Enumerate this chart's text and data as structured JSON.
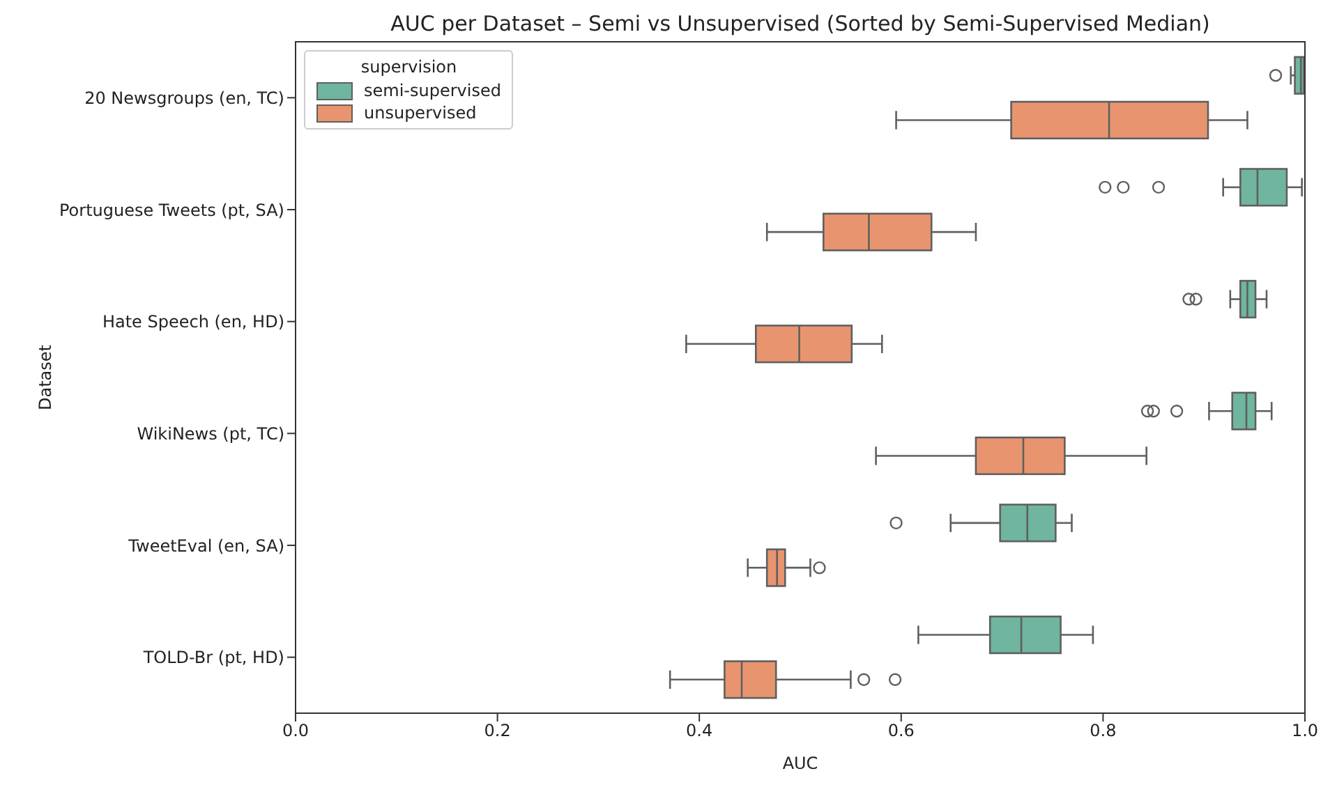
{
  "chart_data": {
    "type": "box",
    "orientation": "horizontal",
    "title": "AUC per Dataset – Semi vs Unsupervised (Sorted by Semi-Supervised Median)",
    "xlabel": "AUC",
    "ylabel": "Dataset",
    "legend_title": "supervision",
    "legend": "top left",
    "categories": [
      "20 Newsgroups (en, TC)",
      "Portuguese Tweets (pt, SA)",
      "Hate Speech (en, HD)",
      "WikiNews (pt, TC)",
      "TweetEval (en, SA)",
      "TOLD-Br (pt, HD)"
    ],
    "xlim": [
      0,
      1
    ],
    "xticks": [
      {
        "value": 0,
        "label": "0.0"
      },
      0.2,
      0.4,
      0.6,
      0.8,
      {
        "value": 1,
        "label": "1.0"
      }
    ],
    "series": [
      {
        "name": "semi-supervised",
        "color": "#6fb59f",
        "boxes": [
          {
            "low": 0.986,
            "q1": 0.99,
            "median": 0.996,
            "q3": 0.999,
            "high": 1.0,
            "outliers": [
              0.971
            ]
          },
          {
            "low": 0.919,
            "q1": 0.936,
            "median": 0.953,
            "q3": 0.982,
            "high": 0.997,
            "outliers": [
              0.802,
              0.82,
              0.855
            ]
          },
          {
            "low": 0.926,
            "q1": 0.936,
            "median": 0.943,
            "q3": 0.951,
            "high": 0.962,
            "outliers": [
              0.885,
              0.892
            ]
          },
          {
            "low": 0.905,
            "q1": 0.928,
            "median": 0.942,
            "q3": 0.951,
            "high": 0.967,
            "outliers": [
              0.844,
              0.85,
              0.873
            ]
          },
          {
            "low": 0.649,
            "q1": 0.698,
            "median": 0.725,
            "q3": 0.753,
            "high": 0.769,
            "outliers": [
              0.595
            ]
          },
          {
            "low": 0.617,
            "q1": 0.688,
            "median": 0.719,
            "q3": 0.758,
            "high": 0.79
          }
        ]
      },
      {
        "name": "unsupervised",
        "color": "#e8956f",
        "boxes": [
          {
            "low": 0.595,
            "q1": 0.709,
            "median": 0.806,
            "q3": 0.904,
            "high": 0.943
          },
          {
            "low": 0.467,
            "q1": 0.523,
            "median": 0.568,
            "q3": 0.63,
            "high": 0.674
          },
          {
            "low": 0.387,
            "q1": 0.456,
            "median": 0.499,
            "q3": 0.551,
            "high": 0.581
          },
          {
            "low": 0.575,
            "q1": 0.674,
            "median": 0.721,
            "q3": 0.762,
            "high": 0.843
          },
          {
            "low": 0.448,
            "q1": 0.467,
            "median": 0.477,
            "q3": 0.485,
            "high": 0.51,
            "outliers": [
              0.519
            ]
          },
          {
            "low": 0.371,
            "q1": 0.425,
            "median": 0.442,
            "q3": 0.476,
            "high": 0.55,
            "outliers": [
              0.563,
              0.594
            ]
          }
        ]
      }
    ]
  }
}
